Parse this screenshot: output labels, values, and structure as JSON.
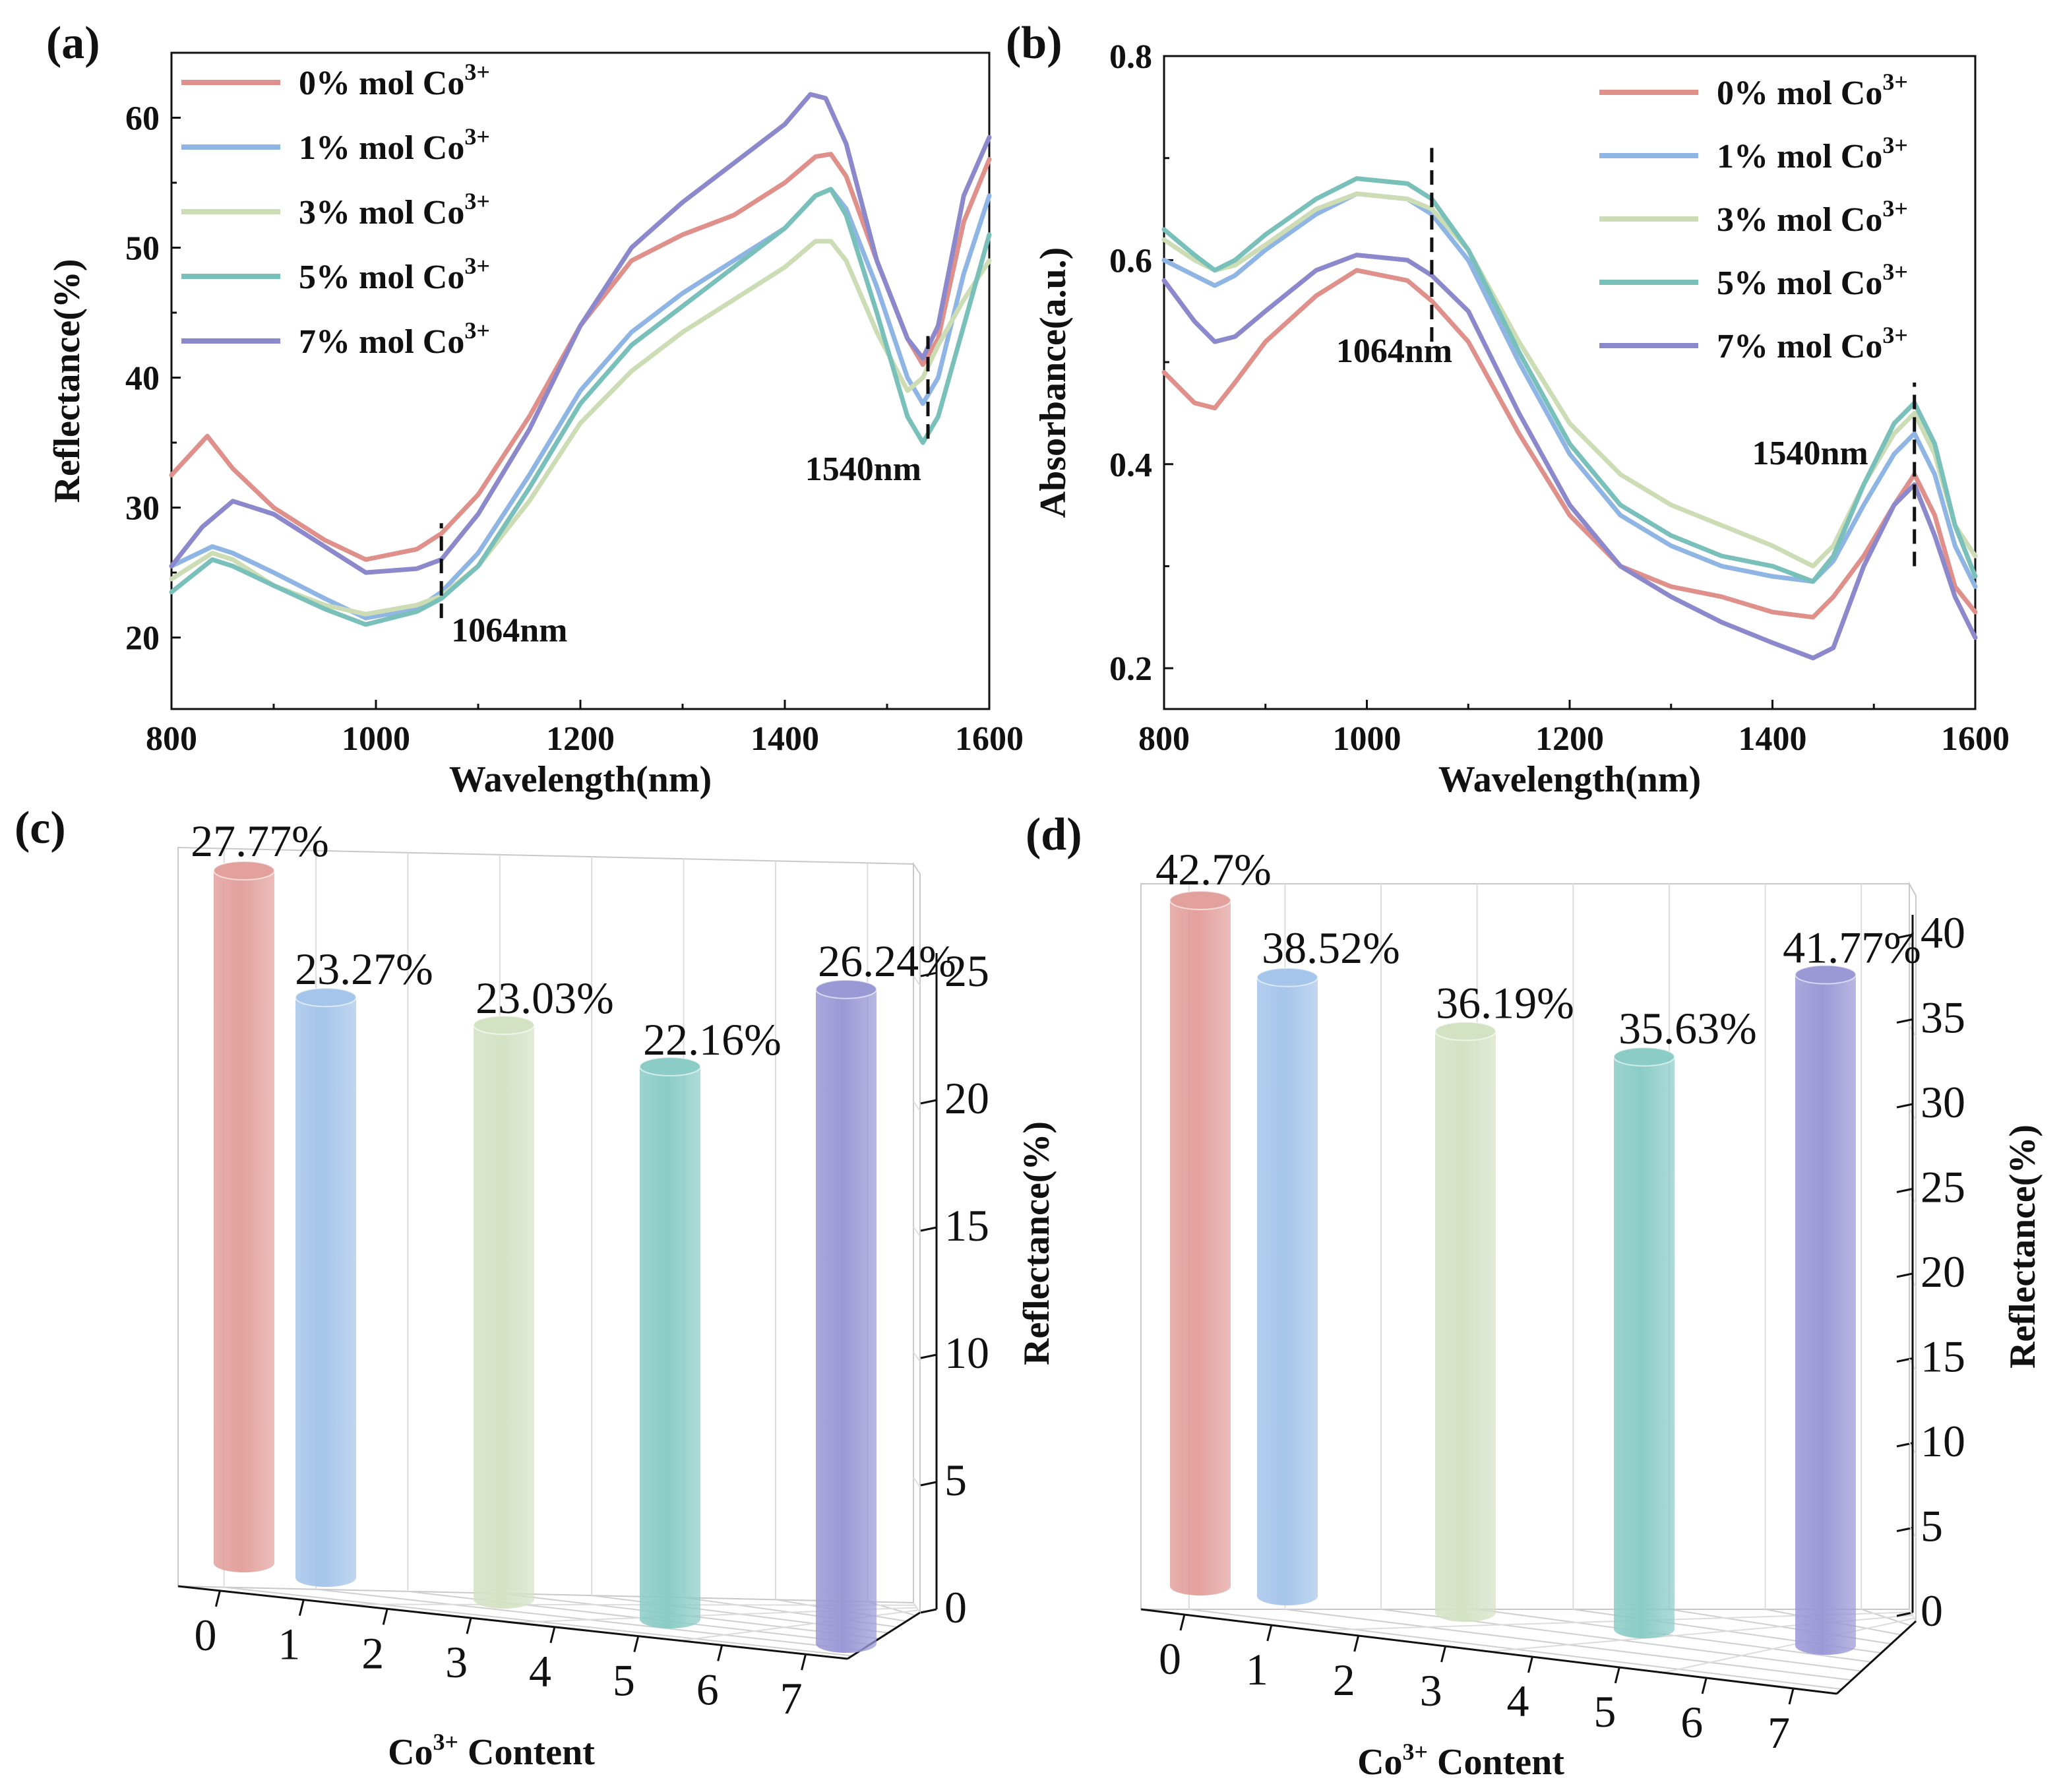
{
  "panel_labels": [
    "(a)",
    "(b)",
    "(c)",
    "(d)"
  ],
  "chart_data": [
    {
      "id": "a",
      "type": "line",
      "xlabel": "Wavelength(nm)",
      "ylabel": "Reflectance(%)",
      "xlim": [
        800,
        1600
      ],
      "ylim": [
        14.5,
        65
      ],
      "xticks": [
        800,
        1000,
        1200,
        1400,
        1600
      ],
      "yticks": [
        20,
        30,
        40,
        50,
        60
      ],
      "legend_position": "top-left",
      "annotations": [
        {
          "text": "1064nm",
          "x": 1064,
          "line_y": [
            21.5,
            28.8
          ],
          "label_y": 19.7
        },
        {
          "text": "1540nm",
          "x": 1540,
          "line_y": [
            35.3,
            43.2
          ],
          "label_y": 32.1
        }
      ],
      "series": [
        {
          "name": "0% mol Co",
          "sup": "3+",
          "color": "#e0908a",
          "x": [
            800,
            835,
            860,
            900,
            950,
            990,
            1040,
            1064,
            1100,
            1150,
            1200,
            1250,
            1300,
            1350,
            1400,
            1430,
            1445,
            1460,
            1490,
            1520,
            1535,
            1550,
            1575,
            1600
          ],
          "y": [
            32.5,
            35.5,
            33,
            30,
            27.5,
            26,
            26.8,
            28,
            31,
            37,
            44,
            49,
            51,
            52.5,
            55,
            57,
            57.2,
            55.5,
            49,
            43,
            41,
            43,
            52,
            56.8
          ]
        },
        {
          "name": "1% mol Co",
          "sup": "3+",
          "color": "#8fb5e5",
          "x": [
            800,
            840,
            860,
            900,
            950,
            990,
            1040,
            1064,
            1100,
            1150,
            1200,
            1250,
            1300,
            1350,
            1400,
            1430,
            1445,
            1460,
            1490,
            1520,
            1535,
            1550,
            1575,
            1600
          ],
          "y": [
            25.5,
            27,
            26.5,
            25,
            23,
            21.5,
            22.2,
            23.5,
            26.5,
            32.5,
            39,
            43.5,
            46.5,
            49,
            51.5,
            54,
            54.5,
            53,
            47,
            40,
            38,
            40,
            48,
            54
          ]
        },
        {
          "name": "3% mol Co",
          "sup": "3+",
          "color": "#ccdcb4",
          "x": [
            800,
            840,
            860,
            900,
            950,
            990,
            1040,
            1064,
            1100,
            1150,
            1200,
            1250,
            1300,
            1350,
            1400,
            1430,
            1445,
            1460,
            1490,
            1520,
            1535,
            1550,
            1575,
            1600
          ],
          "y": [
            24.5,
            26.5,
            26,
            24,
            22.5,
            21.8,
            22.5,
            23.2,
            25.5,
            30.5,
            36.5,
            40.5,
            43.5,
            46,
            48.5,
            50.5,
            50.5,
            49,
            43.5,
            39,
            40,
            42.5,
            46,
            49
          ]
        },
        {
          "name": "5% mol Co",
          "sup": "3+",
          "color": "#78c0b9",
          "x": [
            800,
            840,
            860,
            900,
            950,
            990,
            1040,
            1064,
            1100,
            1150,
            1200,
            1250,
            1300,
            1350,
            1400,
            1430,
            1445,
            1460,
            1490,
            1520,
            1535,
            1550,
            1575,
            1600
          ],
          "y": [
            23.5,
            26,
            25.5,
            24,
            22.2,
            21,
            22,
            23,
            25.5,
            31.5,
            38,
            42.5,
            45.5,
            48.5,
            51.5,
            54,
            54.5,
            52.5,
            45,
            37,
            35,
            37,
            44,
            51
          ]
        },
        {
          "name": "7% mol Co",
          "sup": "3+",
          "color": "#8c88cc",
          "x": [
            800,
            830,
            860,
            900,
            950,
            990,
            1040,
            1064,
            1100,
            1150,
            1200,
            1250,
            1300,
            1350,
            1400,
            1425,
            1440,
            1460,
            1490,
            1520,
            1535,
            1550,
            1575,
            1600
          ],
          "y": [
            25.5,
            28.5,
            30.5,
            29.5,
            27,
            25,
            25.3,
            26,
            29.5,
            36,
            44,
            50,
            53.5,
            56.5,
            59.5,
            61.8,
            61.5,
            58,
            49,
            43,
            41.5,
            44,
            54,
            58.5
          ]
        }
      ]
    },
    {
      "id": "b",
      "type": "line",
      "xlabel": "Wavelength(nm)",
      "ylabel": "Absorbance(a.u.)",
      "xlim": [
        800,
        1600
      ],
      "ylim": [
        0.16,
        0.8
      ],
      "xticks": [
        800,
        1000,
        1200,
        1400,
        1600
      ],
      "yticks": [
        0.2,
        0.4,
        0.6,
        0.8
      ],
      "legend_position": "top-right",
      "annotations": [
        {
          "text": "1064nm",
          "x": 1064,
          "line_y": [
            0.52,
            0.71
          ],
          "label_y": 0.5
        },
        {
          "text": "1540nm",
          "x": 1540,
          "line_y": [
            0.3,
            0.48
          ],
          "label_y": 0.4
        }
      ],
      "series": [
        {
          "name": "0% mol Co",
          "sup": "3+",
          "color": "#e0908a",
          "x": [
            800,
            830,
            850,
            870,
            900,
            950,
            990,
            1040,
            1064,
            1100,
            1150,
            1200,
            1250,
            1300,
            1350,
            1400,
            1440,
            1460,
            1490,
            1520,
            1540,
            1560,
            1580,
            1600
          ],
          "y": [
            0.49,
            0.46,
            0.455,
            0.48,
            0.52,
            0.565,
            0.59,
            0.58,
            0.56,
            0.52,
            0.43,
            0.35,
            0.3,
            0.28,
            0.27,
            0.255,
            0.25,
            0.27,
            0.31,
            0.36,
            0.39,
            0.35,
            0.28,
            0.255
          ]
        },
        {
          "name": "1% mol Co",
          "sup": "3+",
          "color": "#8fb5e5",
          "x": [
            800,
            830,
            850,
            870,
            900,
            950,
            990,
            1040,
            1064,
            1100,
            1150,
            1200,
            1250,
            1300,
            1350,
            1400,
            1440,
            1460,
            1490,
            1520,
            1540,
            1560,
            1580,
            1600
          ],
          "y": [
            0.6,
            0.585,
            0.575,
            0.585,
            0.61,
            0.645,
            0.665,
            0.66,
            0.645,
            0.6,
            0.5,
            0.41,
            0.35,
            0.32,
            0.3,
            0.29,
            0.285,
            0.305,
            0.36,
            0.41,
            0.43,
            0.39,
            0.32,
            0.28
          ]
        },
        {
          "name": "3% mol Co",
          "sup": "3+",
          "color": "#ccdcb4",
          "x": [
            800,
            830,
            850,
            870,
            900,
            950,
            990,
            1040,
            1064,
            1100,
            1150,
            1200,
            1250,
            1300,
            1350,
            1400,
            1440,
            1460,
            1490,
            1520,
            1540,
            1560,
            1580,
            1600
          ],
          "y": [
            0.62,
            0.6,
            0.59,
            0.595,
            0.615,
            0.65,
            0.665,
            0.66,
            0.65,
            0.61,
            0.52,
            0.44,
            0.39,
            0.36,
            0.34,
            0.32,
            0.3,
            0.32,
            0.38,
            0.43,
            0.45,
            0.41,
            0.34,
            0.31
          ]
        },
        {
          "name": "5% mol Co",
          "sup": "3+",
          "color": "#78c0b9",
          "x": [
            800,
            830,
            850,
            870,
            900,
            950,
            990,
            1040,
            1064,
            1100,
            1150,
            1200,
            1250,
            1300,
            1350,
            1400,
            1440,
            1460,
            1490,
            1520,
            1540,
            1560,
            1580,
            1600
          ],
          "y": [
            0.63,
            0.605,
            0.59,
            0.6,
            0.625,
            0.66,
            0.68,
            0.675,
            0.66,
            0.61,
            0.51,
            0.42,
            0.36,
            0.33,
            0.31,
            0.3,
            0.285,
            0.31,
            0.38,
            0.44,
            0.46,
            0.42,
            0.34,
            0.29
          ]
        },
        {
          "name": "7% mol Co",
          "sup": "3+",
          "color": "#8c88cc",
          "x": [
            800,
            830,
            850,
            870,
            900,
            950,
            990,
            1040,
            1064,
            1100,
            1150,
            1200,
            1250,
            1300,
            1350,
            1400,
            1440,
            1460,
            1490,
            1520,
            1540,
            1560,
            1580,
            1600
          ],
          "y": [
            0.58,
            0.54,
            0.52,
            0.525,
            0.55,
            0.59,
            0.605,
            0.6,
            0.585,
            0.55,
            0.45,
            0.36,
            0.3,
            0.27,
            0.245,
            0.225,
            0.21,
            0.22,
            0.3,
            0.36,
            0.38,
            0.33,
            0.27,
            0.23
          ]
        }
      ]
    },
    {
      "id": "c",
      "type": "bar",
      "style": "3d-cylinder",
      "xlabel": "Co",
      "xlabel_sup": "3+",
      "xlabel_rest": " Content",
      "ylabel": "Reflectance(%)",
      "ylim": [
        0,
        27.77
      ],
      "yticks": [
        0,
        5,
        10,
        15,
        20,
        25
      ],
      "xticks": [
        "0",
        "1",
        "2",
        "3",
        "4",
        "5",
        "6",
        "7"
      ],
      "categories": [
        "0",
        "1",
        "3",
        "5",
        "7"
      ],
      "values": [
        27.77,
        23.27,
        23.03,
        22.16,
        26.24
      ],
      "labels": [
        "27.77%",
        "23.27%",
        "23.03%",
        "22.16%",
        "26.24%"
      ],
      "colors": [
        "#e3a19d",
        "#a6c5ea",
        "#d4e2c4",
        "#8bccc6",
        "#9b98d6"
      ]
    },
    {
      "id": "d",
      "type": "bar",
      "style": "3d-cylinder",
      "xlabel": "Co",
      "xlabel_sup": "3+",
      "xlabel_rest": " Content",
      "ylabel": "Reflectance(%)",
      "ylim": [
        0,
        42.7
      ],
      "yticks": [
        0,
        5,
        10,
        15,
        20,
        25,
        30,
        35,
        40
      ],
      "xticks": [
        "0",
        "1",
        "2",
        "3",
        "4",
        "5",
        "6",
        "7"
      ],
      "categories": [
        "0",
        "1",
        "3",
        "5",
        "7"
      ],
      "values": [
        42.7,
        38.52,
        36.19,
        35.63,
        41.77
      ],
      "labels": [
        "42.7%",
        "38.52%",
        "36.19%",
        "35.63%",
        "41.77%"
      ],
      "colors": [
        "#e3a19d",
        "#a6c5ea",
        "#d4e2c4",
        "#8bccc6",
        "#9b98d6"
      ]
    }
  ]
}
